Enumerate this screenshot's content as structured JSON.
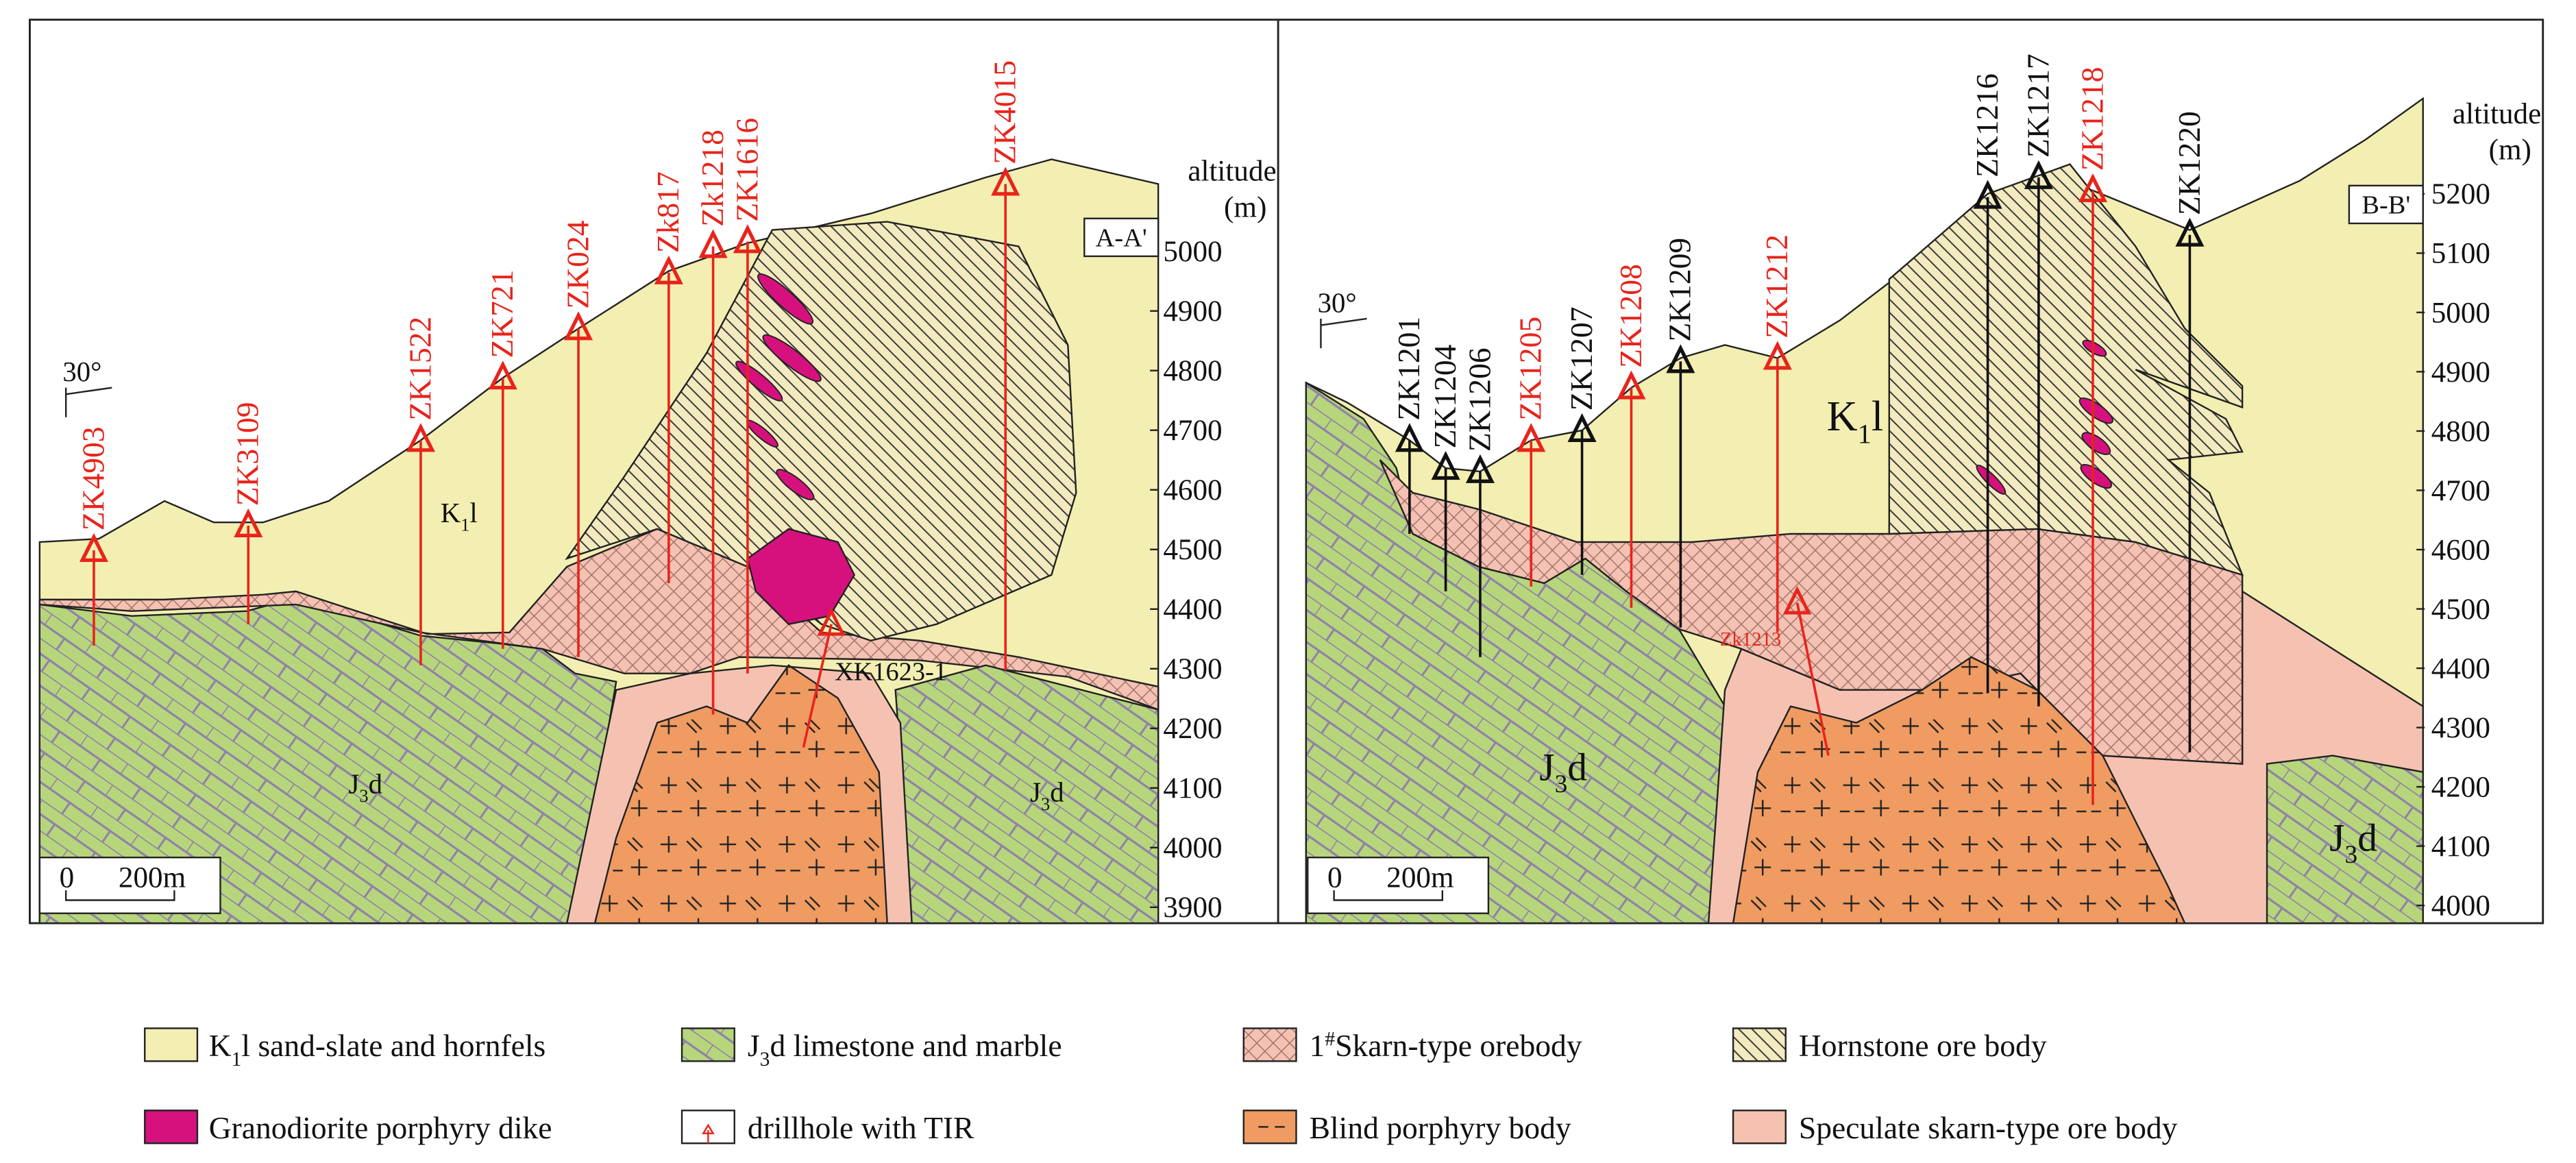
{
  "left_panel": {
    "section": "A-A'",
    "altitude_label": "altitude",
    "altitude_unit": "(m)",
    "dip": "30°",
    "scale": {
      "zero": "0",
      "length": "200m"
    },
    "altitude_ticks": [
      5000,
      4900,
      4800,
      4700,
      4600,
      4500,
      4400,
      4300,
      4200,
      4100,
      4000,
      3900
    ],
    "formations": [
      {
        "base": "K",
        "sub": "1",
        "suffix": "l"
      },
      {
        "base": "J",
        "sub": "3",
        "suffix": "d"
      },
      {
        "base": "J",
        "sub": "3",
        "suffix": "d"
      }
    ],
    "drillholes": [
      {
        "label": "ZK4903",
        "color": "red"
      },
      {
        "label": "ZK3109",
        "color": "red"
      },
      {
        "label": "ZK1522",
        "color": "red"
      },
      {
        "label": "ZK721",
        "color": "red"
      },
      {
        "label": "ZK024",
        "color": "red"
      },
      {
        "label": "Zk817",
        "color": "red"
      },
      {
        "label": "Zk1218",
        "color": "red"
      },
      {
        "label": "ZK1616",
        "color": "red"
      },
      {
        "label": "ZK4015",
        "color": "red"
      }
    ],
    "tir_drillhole": "XK1623-1"
  },
  "right_panel": {
    "section": "B-B'",
    "altitude_label": "altitude",
    "altitude_unit": "(m)",
    "dip": "30°",
    "scale": {
      "zero": "0",
      "length": "200m"
    },
    "altitude_ticks": [
      5200,
      5100,
      5000,
      4900,
      4800,
      4700,
      4600,
      4500,
      4400,
      4300,
      4200,
      4100,
      4000
    ],
    "formations": [
      {
        "base": "K",
        "sub": "1",
        "suffix": "l"
      },
      {
        "base": "J",
        "sub": "3",
        "suffix": "d"
      },
      {
        "base": "J",
        "sub": "3",
        "suffix": "d"
      }
    ],
    "drillholes": [
      {
        "label": "ZK1201",
        "color": "black"
      },
      {
        "label": "ZK1204",
        "color": "black"
      },
      {
        "label": "ZK1206",
        "color": "black"
      },
      {
        "label": "ZK1205",
        "color": "red"
      },
      {
        "label": "ZK1207",
        "color": "black"
      },
      {
        "label": "ZK1208",
        "color": "red"
      },
      {
        "label": "ZK1209",
        "color": "black"
      },
      {
        "label": "ZK1212",
        "color": "red"
      },
      {
        "label": "ZK1216",
        "color": "black"
      },
      {
        "label": "ZK1217",
        "color": "black"
      },
      {
        "label": "ZK1218",
        "color": "red"
      },
      {
        "label": "ZK1220",
        "color": "black"
      }
    ],
    "tir_drillhole": "Zk1213"
  },
  "legend": [
    {
      "parts": [
        {
          "text": "K"
        },
        {
          "text": "1",
          "sub": true
        },
        {
          "text": "l sand-slate and hornfels"
        }
      ]
    },
    {
      "parts": [
        {
          "text": "J"
        },
        {
          "text": "3",
          "sub": true
        },
        {
          "text": "d limestone and marble"
        }
      ]
    },
    {
      "parts": [
        {
          "text": "1"
        },
        {
          "text": "#",
          "sup": true
        },
        {
          "text": "Skarn-type orebody"
        }
      ]
    },
    {
      "parts": [
        {
          "text": "Hornstone ore body"
        }
      ]
    },
    {
      "parts": [
        {
          "text": "Granodiorite porphyry dike"
        }
      ]
    },
    {
      "parts": [
        {
          "text": "drillhole with TIR"
        }
      ]
    },
    {
      "parts": [
        {
          "text": "Blind porphyry body"
        }
      ]
    },
    {
      "parts": [
        {
          "text": "Speculate skarn-type ore body"
        }
      ]
    }
  ]
}
